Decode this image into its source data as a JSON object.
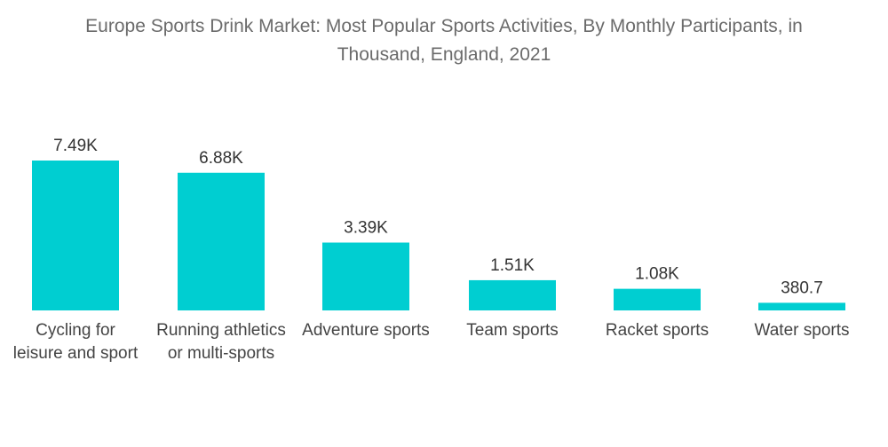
{
  "title_lines": [
    "Europe Sports Drink Market: Most Popular Sports Activities, By Monthly Participants, in",
    "Thousand, England, 2021"
  ],
  "chart_data": {
    "type": "bar",
    "title": "Europe Sports Drink Market: Most Popular Sports Activities, By Monthly Participants, in Thousand, England, 2021",
    "categories": [
      [
        "Cycling for",
        "leisure and sport"
      ],
      [
        "Running athletics",
        "or multi-sports"
      ],
      [
        "Adventure sports"
      ],
      [
        "Team sports"
      ],
      [
        "Racket sports"
      ],
      [
        "Water sports"
      ]
    ],
    "values": [
      7490,
      6880,
      3390,
      1510,
      1080,
      380.7
    ],
    "data_labels": [
      "7.49K",
      "6.88K",
      "3.39K",
      "1.51K",
      "1.08K",
      "380.7"
    ],
    "bar_color": "#00CED1",
    "ylim": [
      0,
      7490
    ],
    "grid": false,
    "legend": "none"
  }
}
